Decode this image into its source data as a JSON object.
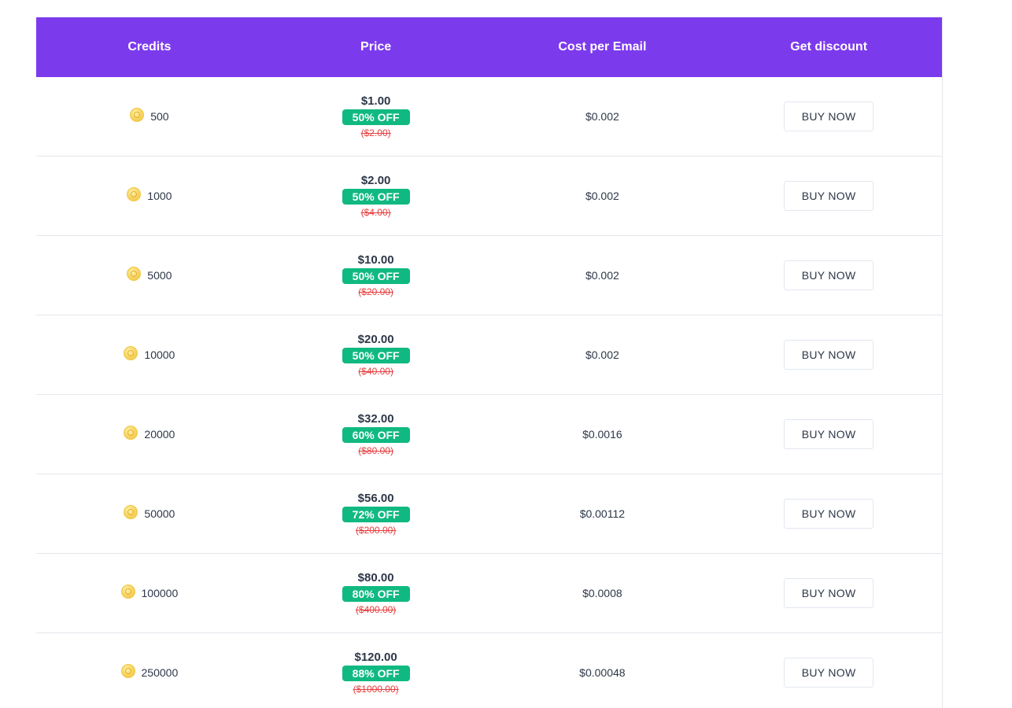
{
  "header": {
    "credits": "Credits",
    "price": "Price",
    "cost_per_email": "Cost per Email",
    "get_discount": "Get discount"
  },
  "rows": [
    {
      "credits": "500",
      "price": "$1.00",
      "badge": "50% OFF",
      "old_price": "($2.00)",
      "cost": "$0.002",
      "button": "BUY NOW"
    },
    {
      "credits": "1000",
      "price": "$2.00",
      "badge": "50% OFF",
      "old_price": "($4.00)",
      "cost": "$0.002",
      "button": "BUY NOW"
    },
    {
      "credits": "5000",
      "price": "$10.00",
      "badge": "50% OFF",
      "old_price": "($20.00)",
      "cost": "$0.002",
      "button": "BUY NOW"
    },
    {
      "credits": "10000",
      "price": "$20.00",
      "badge": "50% OFF",
      "old_price": "($40.00)",
      "cost": "$0.002",
      "button": "BUY NOW"
    },
    {
      "credits": "20000",
      "price": "$32.00",
      "badge": "60% OFF",
      "old_price": "($80.00)",
      "cost": "$0.0016",
      "button": "BUY NOW"
    },
    {
      "credits": "50000",
      "price": "$56.00",
      "badge": "72% OFF",
      "old_price": "($200.00)",
      "cost": "$0.00112",
      "button": "BUY NOW"
    },
    {
      "credits": "100000",
      "price": "$80.00",
      "badge": "80% OFF",
      "old_price": "($400.00)",
      "cost": "$0.0008",
      "button": "BUY NOW"
    },
    {
      "credits": "250000",
      "price": "$120.00",
      "badge": "88% OFF",
      "old_price": "($1000.00)",
      "cost": "$0.00048",
      "button": "BUY NOW"
    }
  ],
  "icons": {
    "credit": "coin-icon"
  },
  "colors": {
    "header_bg": "#7c3aed",
    "badge_bg": "#10b981",
    "old_price": "#e53e3e"
  }
}
